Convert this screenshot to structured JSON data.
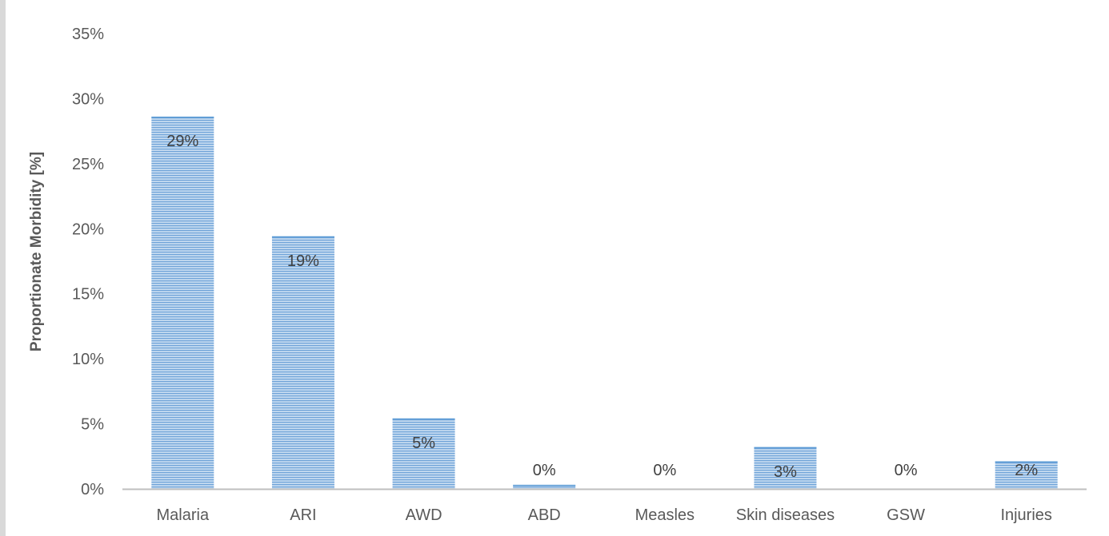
{
  "chart_data": {
    "type": "bar",
    "title": "",
    "xlabel": "",
    "ylabel": "Proportionate Morbidity [%]",
    "categories": [
      "Malaria",
      "ARI",
      "AWD",
      "ABD",
      "Measles",
      "Skin diseases",
      "GSW",
      "Injuries"
    ],
    "values": [
      28.6,
      19.4,
      5.4,
      0.3,
      0.0,
      3.2,
      0.0,
      2.1
    ],
    "data_labels": [
      "29%",
      "19%",
      "5%",
      "0%",
      "0%",
      "3%",
      "0%",
      "2%"
    ],
    "y_ticks": [
      "0%",
      "5%",
      "10%",
      "15%",
      "20%",
      "25%",
      "30%",
      "35%"
    ],
    "ylim": [
      0,
      35
    ],
    "grid": false,
    "legend": "none",
    "bar_color": "#9dc3e6",
    "bar_stripe_color": "#5b9bd5",
    "axis_color": "#bfbfbf"
  }
}
